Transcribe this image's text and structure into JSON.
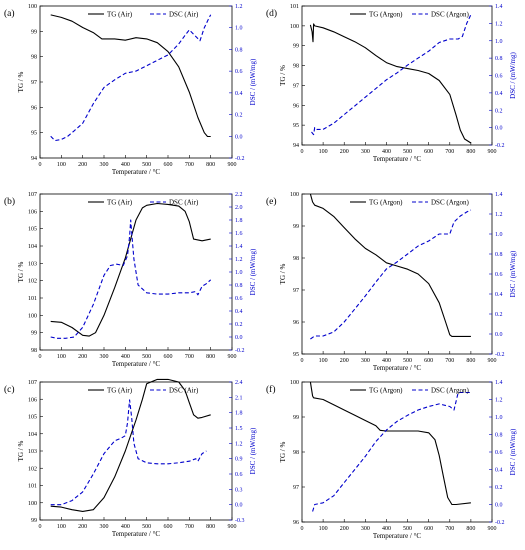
{
  "colors": {
    "tg": "#000000",
    "dsc": "#0000cc"
  },
  "chart_data": [
    {
      "type": "line",
      "panel": "(a)",
      "xlabel": "Temperature / °C",
      "ylabel": "TG / %",
      "y2label": "DSC / (mW/mg)",
      "xlim": [
        0,
        900
      ],
      "ylim": [
        94,
        100
      ],
      "y2lim": [
        -0.2,
        1.2
      ],
      "xticks": [
        "0",
        "100",
        "200",
        "300",
        "400",
        "500",
        "600",
        "700",
        "800",
        "900"
      ],
      "yticks": [
        "94",
        "95",
        "96",
        "97",
        "98",
        "99",
        "100"
      ],
      "y2ticks": [
        "-0.2",
        "0.0",
        "0.2",
        "0.4",
        "0.6",
        "0.8",
        "1.0",
        "1.2"
      ],
      "legend": {
        "position": "top"
      },
      "series": [
        {
          "name": "TG (Air)",
          "axis": "left",
          "style": "solid",
          "x": [
            50,
            100,
            150,
            200,
            250,
            290,
            350,
            400,
            450,
            500,
            550,
            600,
            650,
            700,
            740,
            770,
            785,
            800
          ],
          "y": [
            99.65,
            99.55,
            99.4,
            99.15,
            98.95,
            98.7,
            98.7,
            98.65,
            98.75,
            98.7,
            98.55,
            98.2,
            97.6,
            96.6,
            95.6,
            95.0,
            94.85,
            94.85
          ]
        },
        {
          "name": "DSC (Air)",
          "axis": "right",
          "style": "dashed",
          "x": [
            50,
            70,
            100,
            130,
            160,
            200,
            250,
            300,
            350,
            400,
            450,
            500,
            550,
            600,
            650,
            680,
            700,
            730,
            750,
            770,
            790,
            800
          ],
          "y": [
            0.0,
            -0.04,
            -0.03,
            0.0,
            0.05,
            0.12,
            0.3,
            0.45,
            0.52,
            0.58,
            0.6,
            0.65,
            0.7,
            0.75,
            0.85,
            0.93,
            0.98,
            0.92,
            0.88,
            1.0,
            1.08,
            1.12
          ]
        }
      ]
    },
    {
      "type": "line",
      "panel": "(d)",
      "xlabel": "Temperature / °C",
      "ylabel": "TG / %",
      "y2label": "DSC / (mW/mg)",
      "xlim": [
        0,
        900
      ],
      "ylim": [
        94,
        101
      ],
      "y2lim": [
        -0.2,
        1.4
      ],
      "xticks": [
        "0",
        "100",
        "200",
        "300",
        "400",
        "500",
        "600",
        "700",
        "800",
        "900"
      ],
      "yticks": [
        "94",
        "95",
        "96",
        "97",
        "98",
        "99",
        "100",
        "101"
      ],
      "y2ticks": [
        "-0.2",
        "0.0",
        "0.2",
        "0.4",
        "0.6",
        "0.8",
        "1.0",
        "1.2",
        "1.4"
      ],
      "legend": {
        "position": "top"
      },
      "series": [
        {
          "name": "TG (Argon)",
          "axis": "left",
          "style": "solid",
          "x": [
            40,
            48,
            52,
            55,
            60,
            100,
            150,
            200,
            250,
            300,
            350,
            400,
            450,
            500,
            550,
            600,
            650,
            700,
            730,
            750,
            770,
            800
          ],
          "y": [
            100.05,
            99.7,
            99.2,
            100.1,
            100.0,
            99.9,
            99.7,
            99.45,
            99.2,
            98.9,
            98.5,
            98.15,
            97.95,
            97.85,
            97.75,
            97.6,
            97.25,
            96.55,
            95.5,
            94.75,
            94.3,
            94.1
          ]
        },
        {
          "name": "DSC (Argon)",
          "axis": "right",
          "style": "dashed",
          "x": [
            45,
            55,
            60,
            70,
            100,
            150,
            200,
            250,
            300,
            350,
            400,
            450,
            500,
            550,
            600,
            650,
            700,
            740,
            760,
            780,
            800
          ],
          "y": [
            -0.05,
            -0.08,
            0.0,
            -0.02,
            -0.02,
            0.05,
            0.15,
            0.25,
            0.35,
            0.45,
            0.55,
            0.63,
            0.72,
            0.8,
            0.88,
            0.98,
            1.02,
            1.02,
            1.05,
            1.2,
            1.3
          ]
        }
      ]
    },
    {
      "type": "line",
      "panel": "(b)",
      "xlabel": "Temperature / °C",
      "ylabel": "TG / %",
      "y2label": "DSC / (mW/mg)",
      "xlim": [
        0,
        900
      ],
      "ylim": [
        98,
        107
      ],
      "y2lim": [
        -0.2,
        2.2
      ],
      "xticks": [
        "0",
        "100",
        "200",
        "300",
        "400",
        "500",
        "600",
        "700",
        "800",
        "900"
      ],
      "yticks": [
        "98",
        "99",
        "100",
        "101",
        "102",
        "103",
        "104",
        "105",
        "106",
        "107"
      ],
      "y2ticks": [
        "-0.2",
        "0.0",
        "0.2",
        "0.4",
        "0.6",
        "0.8",
        "1.0",
        "1.2",
        "1.4",
        "1.6",
        "1.8",
        "2.0",
        "2.2"
      ],
      "legend": {
        "position": "top"
      },
      "series": [
        {
          "name": "TG (Air)",
          "axis": "left",
          "style": "solid",
          "x": [
            50,
            100,
            150,
            200,
            230,
            260,
            300,
            350,
            400,
            450,
            480,
            500,
            550,
            600,
            650,
            680,
            700,
            720,
            760,
            800
          ],
          "y": [
            99.65,
            99.6,
            99.3,
            98.85,
            98.8,
            99.0,
            100.0,
            101.6,
            103.3,
            105.5,
            106.2,
            106.35,
            106.45,
            106.4,
            106.3,
            106.0,
            105.4,
            104.4,
            104.3,
            104.4
          ]
        },
        {
          "name": "DSC (Air)",
          "axis": "right",
          "style": "dashed",
          "x": [
            50,
            80,
            120,
            160,
            200,
            250,
            300,
            330,
            360,
            390,
            410,
            420,
            425,
            430,
            440,
            460,
            500,
            550,
            600,
            650,
            700,
            730,
            740,
            760,
            780,
            800
          ],
          "y": [
            0.0,
            -0.02,
            -0.02,
            0.0,
            0.15,
            0.5,
            0.95,
            1.1,
            1.12,
            1.1,
            1.25,
            1.55,
            1.8,
            1.6,
            1.2,
            0.8,
            0.68,
            0.66,
            0.66,
            0.68,
            0.68,
            0.7,
            0.65,
            0.78,
            0.82,
            0.88
          ]
        }
      ]
    },
    {
      "type": "line",
      "panel": "(e)",
      "xlabel": "Temperature / °C",
      "ylabel": "TG / %",
      "y2label": "DSC / (mW/mg)",
      "xlim": [
        0,
        900
      ],
      "ylim": [
        95,
        100
      ],
      "y2lim": [
        -0.2,
        1.4
      ],
      "xticks": [
        "0",
        "100",
        "200",
        "300",
        "400",
        "500",
        "600",
        "700",
        "800",
        "900"
      ],
      "yticks": [
        "95",
        "96",
        "97",
        "98",
        "99",
        "100"
      ],
      "y2ticks": [
        "-0.2",
        "0.0",
        "0.2",
        "0.4",
        "0.6",
        "0.8",
        "1.0",
        "1.2",
        "1.4"
      ],
      "legend": {
        "position": "top"
      },
      "series": [
        {
          "name": "TG (Argon)",
          "axis": "left",
          "style": "solid",
          "x": [
            40,
            50,
            60,
            100,
            150,
            200,
            250,
            300,
            350,
            400,
            450,
            500,
            550,
            600,
            650,
            680,
            700,
            710,
            720,
            800
          ],
          "y": [
            100.0,
            99.75,
            99.65,
            99.55,
            99.3,
            98.95,
            98.6,
            98.3,
            98.1,
            97.85,
            97.75,
            97.65,
            97.5,
            97.2,
            96.6,
            96.0,
            95.6,
            95.55,
            95.55,
            95.55
          ]
        },
        {
          "name": "DSC (Argon)",
          "axis": "right",
          "style": "dashed",
          "x": [
            40,
            60,
            80,
            100,
            150,
            200,
            250,
            300,
            350,
            400,
            450,
            500,
            550,
            600,
            650,
            700,
            720,
            750,
            780,
            800
          ],
          "y": [
            -0.05,
            -0.02,
            -0.02,
            -0.02,
            0.02,
            0.12,
            0.25,
            0.38,
            0.52,
            0.65,
            0.72,
            0.8,
            0.88,
            0.93,
            1.0,
            1.0,
            1.12,
            1.18,
            1.22,
            1.24
          ]
        }
      ]
    },
    {
      "type": "line",
      "panel": "(c)",
      "xlabel": "Temperature / °C",
      "ylabel": "TG / %",
      "y2label": "DSC / (mW/mg)",
      "xlim": [
        0,
        900
      ],
      "ylim": [
        99,
        107
      ],
      "y2lim": [
        -0.3,
        2.4
      ],
      "xticks": [
        "0",
        "100",
        "200",
        "300",
        "400",
        "500",
        "600",
        "700",
        "800",
        "900"
      ],
      "yticks": [
        "99",
        "100",
        "101",
        "102",
        "103",
        "104",
        "105",
        "106",
        "107"
      ],
      "y2ticks": [
        "-0.3",
        "0.0",
        "0.3",
        "0.6",
        "0.9",
        "1.2",
        "1.5",
        "1.8",
        "2.1",
        "2.4"
      ],
      "legend": {
        "position": "top"
      },
      "series": [
        {
          "name": "TG (Air)",
          "axis": "left",
          "style": "solid",
          "x": [
            50,
            100,
            150,
            200,
            250,
            300,
            350,
            400,
            450,
            480,
            500,
            550,
            600,
            650,
            680,
            700,
            720,
            740,
            760,
            800
          ],
          "y": [
            99.8,
            99.75,
            99.6,
            99.5,
            99.6,
            100.3,
            101.5,
            103.0,
            104.8,
            106.0,
            106.9,
            107.15,
            107.15,
            107.0,
            106.5,
            105.8,
            105.1,
            104.9,
            104.95,
            105.1
          ]
        },
        {
          "name": "DSC (Air)",
          "axis": "right",
          "style": "dashed",
          "x": [
            50,
            100,
            150,
            200,
            250,
            300,
            350,
            380,
            400,
            410,
            420,
            430,
            440,
            460,
            500,
            550,
            600,
            650,
            700,
            730,
            740,
            760,
            780
          ],
          "y": [
            0.0,
            0.0,
            0.08,
            0.25,
            0.6,
            1.0,
            1.25,
            1.3,
            1.35,
            1.6,
            2.05,
            1.7,
            1.2,
            0.9,
            0.82,
            0.8,
            0.8,
            0.82,
            0.85,
            0.9,
            0.85,
            1.0,
            1.05
          ]
        }
      ]
    },
    {
      "type": "line",
      "panel": "(f)",
      "xlabel": "Temperature / °C",
      "ylabel": "TG / %",
      "y2label": "DSC / (mW/mg)",
      "xlim": [
        0,
        900
      ],
      "ylim": [
        96,
        100
      ],
      "y2lim": [
        -0.2,
        1.4
      ],
      "xticks": [
        "0",
        "100",
        "200",
        "300",
        "400",
        "500",
        "600",
        "700",
        "800",
        "900"
      ],
      "yticks": [
        "96",
        "97",
        "98",
        "99",
        "100"
      ],
      "y2ticks": [
        "-0.2",
        "0.0",
        "0.2",
        "0.4",
        "0.6",
        "0.8",
        "1.0",
        "1.2",
        "1.4"
      ],
      "legend": {
        "position": "top"
      },
      "series": [
        {
          "name": "TG (Argon)",
          "axis": "left",
          "style": "solid",
          "x": [
            40,
            50,
            55,
            100,
            150,
            200,
            250,
            300,
            350,
            370,
            400,
            450,
            500,
            550,
            600,
            630,
            650,
            670,
            690,
            710,
            730,
            800
          ],
          "y": [
            100.0,
            99.6,
            99.55,
            99.5,
            99.35,
            99.2,
            99.05,
            98.9,
            98.75,
            98.62,
            98.6,
            98.6,
            98.6,
            98.6,
            98.55,
            98.35,
            97.9,
            97.3,
            96.7,
            96.5,
            96.5,
            96.55
          ]
        },
        {
          "name": "DSC (Argon)",
          "axis": "right",
          "style": "dashed",
          "x": [
            50,
            60,
            100,
            150,
            200,
            250,
            300,
            350,
            400,
            450,
            500,
            550,
            600,
            650,
            700,
            720,
            740,
            760,
            780,
            800
          ],
          "y": [
            -0.08,
            0.0,
            0.02,
            0.1,
            0.25,
            0.4,
            0.55,
            0.72,
            0.85,
            0.95,
            1.02,
            1.08,
            1.12,
            1.15,
            1.12,
            1.08,
            1.28,
            1.28,
            1.28,
            1.28
          ]
        }
      ]
    }
  ]
}
